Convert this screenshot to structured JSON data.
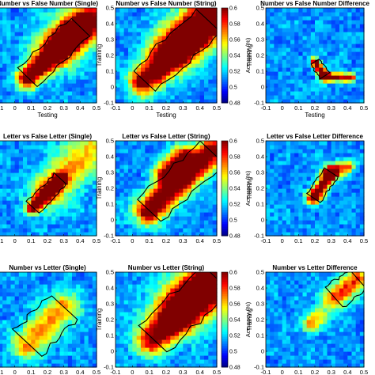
{
  "figure": {
    "panel_titles": [
      [
        "Number vs False Number (Single)",
        "Number vs False Number (String)",
        "Number vs False Number Difference"
      ],
      [
        "Letter vs False Letter (Single)",
        "Letter vs False Letter (String)",
        "Letter vs False Letter Difference"
      ],
      [
        "Number vs Letter (Single)",
        "Number vs Letter (String)",
        "Number vs Letter Difference"
      ]
    ],
    "xlabel": "Testing",
    "ylabel": "Training",
    "colorbar_label": "Accuracy (%)"
  },
  "chart_data": [
    {
      "type": "heatmap",
      "title": "Number vs False Number (Single)",
      "xlabel": "Testing",
      "ylabel": "",
      "x_ticks": [
        "-0.1",
        "0",
        "0.1",
        "0.2",
        "0.3",
        "0.4",
        "0.5"
      ],
      "xlim": [
        -0.1,
        0.5
      ],
      "ylim": [
        -0.1,
        0.5
      ],
      "blobs": [
        {
          "x0": 0.08,
          "y0": 0.06,
          "x1": 0.4,
          "y1": 0.38,
          "width": 0.05,
          "peak": 1.0
        },
        {
          "x0": 0.28,
          "y0": 0.27,
          "x1": 0.5,
          "y1": 0.46,
          "width": 0.1,
          "peak": 0.75
        }
      ],
      "significance_contour": "irregular black outline around the diagonal band (0.05–0.5)"
    },
    {
      "type": "heatmap",
      "title": "Number vs False Number (String)",
      "xlabel": "Testing",
      "ylabel": "Training",
      "x_ticks": [
        "-0.1",
        "0",
        "0.1",
        "0.2",
        "0.3",
        "0.4",
        "0.5"
      ],
      "y_ticks": [
        "-0.1",
        "0",
        "0.1",
        "0.2",
        "0.3",
        "0.4",
        "0.5"
      ],
      "xlim": [
        -0.1,
        0.5
      ],
      "ylim": [
        -0.1,
        0.5
      ],
      "color_range": [
        0.48,
        0.6
      ],
      "colorbar_ticks": [
        "0.48",
        "0.5",
        "0.52",
        "0.54",
        "0.56",
        "0.58",
        "0.6"
      ],
      "blobs": [
        {
          "x0": 0.07,
          "y0": 0.04,
          "x1": 0.45,
          "y1": 0.42,
          "width": 0.06,
          "peak": 1.0
        },
        {
          "x0": 0.25,
          "y0": 0.25,
          "x1": 0.5,
          "y1": 0.48,
          "width": 0.1,
          "peak": 0.8
        }
      ],
      "significance_contour": "irregular black outline around the diagonal band (0.05–0.5)"
    },
    {
      "type": "heatmap",
      "title": "Number vs False Number Difference",
      "xlabel": "Testing",
      "ylabel": "Training",
      "x_ticks": [
        "-0.1",
        "0",
        "0.1",
        "0.2",
        "0.3",
        "0.4",
        "0.5"
      ],
      "y_ticks": [
        "-0.1",
        "0",
        "0.1",
        "0.2",
        "0.3",
        "0.4",
        "0.5"
      ],
      "xlim": [
        -0.1,
        0.5
      ],
      "ylim": [
        -0.1,
        0.5
      ],
      "blobs": [
        {
          "x0": 0.2,
          "y0": 0.16,
          "x1": 0.26,
          "y1": 0.07,
          "width": 0.02,
          "peak": 1.0
        },
        {
          "x0": 0.26,
          "y0": 0.07,
          "x1": 0.42,
          "y1": 0.06,
          "width": 0.02,
          "peak": 0.85
        }
      ],
      "significance_contour": "thin black outline along the hook-shaped effect near the bottom"
    },
    {
      "type": "heatmap",
      "title": "Letter vs False Letter (Single)",
      "xlabel": "",
      "ylabel": "",
      "x_ticks": [
        "-0.1",
        "0",
        "0.1",
        "0.2",
        "0.3",
        "0.4",
        "0.5"
      ],
      "xlim": [
        -0.1,
        0.5
      ],
      "ylim": [
        -0.1,
        0.5
      ],
      "blobs": [
        {
          "x0": 0.11,
          "y0": 0.08,
          "x1": 0.28,
          "y1": 0.26,
          "width": 0.03,
          "peak": 1.0
        },
        {
          "x0": 0.22,
          "y0": 0.2,
          "x1": 0.45,
          "y1": 0.43,
          "width": 0.09,
          "peak": 0.5
        }
      ],
      "significance_contour": "black outline around the diagonal band"
    },
    {
      "type": "heatmap",
      "title": "Letter vs False Letter (String)",
      "xlabel": "",
      "ylabel": "Training",
      "x_ticks": [
        "-0.1",
        "0",
        "0.1",
        "0.2",
        "0.3",
        "0.4",
        "0.5"
      ],
      "y_ticks": [
        "-0.1",
        "0",
        "0.1",
        "0.2",
        "0.3",
        "0.4",
        "0.5"
      ],
      "xlim": [
        -0.1,
        0.5
      ],
      "ylim": [
        -0.1,
        0.5
      ],
      "color_range": [
        0.48,
        0.6
      ],
      "colorbar_ticks": [
        "0.48",
        "0.5",
        "0.52",
        "0.54",
        "0.56",
        "0.58",
        "0.6"
      ],
      "blobs": [
        {
          "x0": 0.1,
          "y0": 0.06,
          "x1": 0.47,
          "y1": 0.43,
          "width": 0.06,
          "peak": 1.0
        },
        {
          "x0": 0.2,
          "y0": 0.3,
          "x1": 0.3,
          "y1": 0.4,
          "width": 0.05,
          "peak": 0.8
        }
      ],
      "significance_contour": "black outline around the diagonal band"
    },
    {
      "type": "heatmap",
      "title": "Letter vs False Letter Difference",
      "xlabel": "",
      "ylabel": "Training",
      "x_ticks": [
        "-0.1",
        "0",
        "0.1",
        "0.2",
        "0.3",
        "0.4",
        "0.5"
      ],
      "y_ticks": [
        "-0.1",
        "0",
        "0.1",
        "0.2",
        "0.3",
        "0.4",
        "0.5"
      ],
      "xlim": [
        -0.1,
        0.5
      ],
      "ylim": [
        -0.1,
        0.5
      ],
      "blobs": [
        {
          "x0": 0.19,
          "y0": 0.14,
          "x1": 0.3,
          "y1": 0.3,
          "width": 0.03,
          "peak": 1.0
        },
        {
          "x0": 0.3,
          "y0": 0.3,
          "x1": 0.4,
          "y1": 0.34,
          "width": 0.03,
          "peak": 0.6
        }
      ],
      "significance_contour": "black outline around the cross-shaped effect"
    },
    {
      "type": "heatmap",
      "title": "Number vs Letter (Single)",
      "xlabel": "Testing",
      "ylabel": "",
      "x_ticks": [
        "-0.1",
        "0",
        "0.1",
        "0.2",
        "0.3",
        "0.4",
        "0.5"
      ],
      "xlim": [
        -0.1,
        0.5
      ],
      "ylim": [
        -0.1,
        0.5
      ],
      "blobs": [
        {
          "x0": 0.08,
          "y0": 0.05,
          "x1": 0.3,
          "y1": 0.28,
          "width": 0.07,
          "peak": 0.55
        }
      ],
      "significance_contour": "black outline around the lower-left diagonal region"
    },
    {
      "type": "heatmap",
      "title": "Number vs Letter (String)",
      "xlabel": "Testing",
      "ylabel": "Training",
      "x_ticks": [
        "-0.1",
        "0",
        "0.1",
        "0.2",
        "0.3",
        "0.4",
        "0.5"
      ],
      "y_ticks": [
        "-0.1",
        "0",
        "0.1",
        "0.2",
        "0.3",
        "0.4",
        "0.5"
      ],
      "xlim": [
        -0.1,
        0.5
      ],
      "ylim": [
        -0.1,
        0.5
      ],
      "color_range": [
        0.48,
        0.6
      ],
      "colorbar_ticks": [
        "0.48",
        "0.5",
        "0.52",
        "0.54",
        "0.56",
        "0.58",
        "0.6"
      ],
      "blobs": [
        {
          "x0": 0.12,
          "y0": 0.08,
          "x1": 0.5,
          "y1": 0.46,
          "width": 0.07,
          "peak": 0.9
        },
        {
          "x0": 0.3,
          "y0": 0.3,
          "x1": 0.5,
          "y1": 0.5,
          "width": 0.12,
          "peak": 0.75
        }
      ],
      "significance_contour": "black outline around the broad diagonal region"
    },
    {
      "type": "heatmap",
      "title": "Number vs Letter Difference",
      "xlabel": "Testing",
      "ylabel": "Training",
      "x_ticks": [
        "-0.1",
        "0",
        "0.1",
        "0.2",
        "0.3",
        "0.4",
        "0.5"
      ],
      "y_ticks": [
        "-0.1",
        "0",
        "0.1",
        "0.2",
        "0.3",
        "0.4",
        "0.5"
      ],
      "xlim": [
        -0.1,
        0.5
      ],
      "ylim": [
        -0.1,
        0.5
      ],
      "blobs": [
        {
          "x0": 0.32,
          "y0": 0.34,
          "x1": 0.46,
          "y1": 0.46,
          "width": 0.05,
          "peak": 0.7
        },
        {
          "x0": 0.18,
          "y0": 0.18,
          "x1": 0.22,
          "y1": 0.22,
          "width": 0.04,
          "peak": 0.5
        }
      ],
      "significance_contour": "black outline around the upper-right region and a small lower-left patch"
    }
  ]
}
